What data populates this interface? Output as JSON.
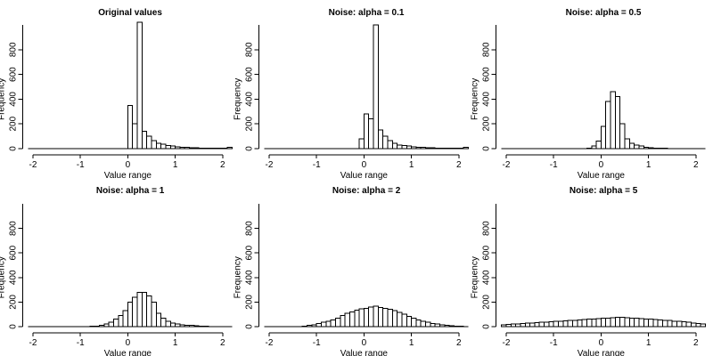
{
  "chart_data": [
    {
      "type": "bar",
      "title": "Original values",
      "xlabel": "Value range",
      "ylabel": "Frequency",
      "xlim": [
        -2.1,
        2.2
      ],
      "ylim": [
        0,
        1000
      ],
      "xticks": [
        "-2",
        "-1",
        "0",
        "1",
        "2"
      ],
      "yticks": [
        "0",
        "200",
        "400",
        "600",
        "800"
      ],
      "bin_width": 0.1,
      "bin_starts": [
        0.0,
        0.1,
        0.2,
        0.3,
        0.4,
        0.5,
        0.6,
        0.7,
        0.8,
        0.9,
        1.0,
        1.1,
        1.2,
        1.3,
        1.4,
        1.5,
        1.6,
        1.7,
        1.8,
        1.9,
        2.0,
        2.1
      ],
      "values": [
        350,
        200,
        1020,
        140,
        100,
        65,
        45,
        35,
        25,
        20,
        15,
        12,
        10,
        8,
        6,
        5,
        4,
        3,
        3,
        2,
        2,
        10
      ]
    },
    {
      "type": "bar",
      "title": "Noise: alpha = 0.1",
      "xlabel": "Value range",
      "ylabel": "Frequency",
      "xlim": [
        -2.1,
        2.2
      ],
      "ylim": [
        0,
        1000
      ],
      "xticks": [
        "-2",
        "-1",
        "0",
        "1",
        "2"
      ],
      "yticks": [
        "0",
        "200",
        "400",
        "600",
        "800"
      ],
      "bin_width": 0.1,
      "bin_starts": [
        -0.1,
        0.0,
        0.1,
        0.2,
        0.3,
        0.4,
        0.5,
        0.6,
        0.7,
        0.8,
        0.9,
        1.0,
        1.1,
        1.2,
        1.3,
        1.4,
        1.5,
        1.6,
        1.7,
        1.8,
        1.9,
        2.0,
        2.1
      ],
      "values": [
        80,
        280,
        240,
        1000,
        150,
        100,
        65,
        45,
        30,
        25,
        20,
        15,
        12,
        10,
        8,
        6,
        5,
        4,
        3,
        3,
        2,
        2,
        10
      ]
    },
    {
      "type": "bar",
      "title": "Noise: alpha = 0.5",
      "xlabel": "Value range",
      "ylabel": "Frequency",
      "xlim": [
        -2.1,
        2.2
      ],
      "ylim": [
        0,
        1000
      ],
      "xticks": [
        "-2",
        "-1",
        "0",
        "1",
        "2"
      ],
      "yticks": [
        "0",
        "200",
        "400",
        "600",
        "800"
      ],
      "bin_width": 0.1,
      "bin_starts": [
        -0.3,
        -0.2,
        -0.1,
        0.0,
        0.1,
        0.2,
        0.3,
        0.4,
        0.5,
        0.6,
        0.7,
        0.8,
        0.9,
        1.0,
        1.1,
        1.2,
        1.3
      ],
      "values": [
        5,
        20,
        60,
        180,
        380,
        460,
        420,
        200,
        80,
        45,
        30,
        20,
        12,
        8,
        5,
        3,
        2
      ]
    },
    {
      "type": "bar",
      "title": "Noise: alpha = 1",
      "xlabel": "Value range",
      "ylabel": "Frequency",
      "xlim": [
        -2.1,
        2.2
      ],
      "ylim": [
        0,
        1000
      ],
      "xticks": [
        "-2",
        "-1",
        "0",
        "1",
        "2"
      ],
      "yticks": [
        "0",
        "200",
        "400",
        "600",
        "800"
      ],
      "bin_width": 0.1,
      "bin_starts": [
        -0.8,
        -0.7,
        -0.6,
        -0.5,
        -0.4,
        -0.3,
        -0.2,
        -0.1,
        0.0,
        0.1,
        0.2,
        0.3,
        0.4,
        0.5,
        0.6,
        0.7,
        0.8,
        0.9,
        1.0,
        1.1,
        1.2,
        1.3,
        1.4,
        1.5,
        1.6
      ],
      "values": [
        2,
        5,
        10,
        20,
        35,
        60,
        90,
        130,
        200,
        240,
        280,
        280,
        250,
        200,
        110,
        70,
        45,
        30,
        20,
        15,
        12,
        10,
        8,
        5,
        3
      ]
    },
    {
      "type": "bar",
      "title": "Noise: alpha = 2",
      "xlabel": "Value range",
      "ylabel": "Frequency",
      "xlim": [
        -2.1,
        2.2
      ],
      "ylim": [
        0,
        1000
      ],
      "xticks": [
        "-2",
        "-1",
        "0",
        "1",
        "2"
      ],
      "yticks": [
        "0",
        "200",
        "400",
        "600",
        "800"
      ],
      "bin_width": 0.1,
      "bin_starts": [
        -1.3,
        -1.2,
        -1.1,
        -1.0,
        -0.9,
        -0.8,
        -0.7,
        -0.6,
        -0.5,
        -0.4,
        -0.3,
        -0.2,
        -0.1,
        0.0,
        0.1,
        0.2,
        0.3,
        0.4,
        0.5,
        0.6,
        0.7,
        0.8,
        0.9,
        1.0,
        1.1,
        1.2,
        1.3,
        1.4,
        1.5,
        1.6,
        1.7,
        1.8,
        1.9,
        2.0
      ],
      "values": [
        5,
        10,
        15,
        25,
        35,
        45,
        55,
        70,
        90,
        110,
        120,
        135,
        145,
        150,
        160,
        165,
        155,
        150,
        140,
        130,
        115,
        100,
        85,
        70,
        55,
        45,
        35,
        25,
        20,
        15,
        10,
        8,
        5,
        3
      ]
    },
    {
      "type": "bar",
      "title": "Noise: alpha = 5",
      "xlabel": "Value range",
      "ylabel": "Frequency",
      "xlim": [
        -2.1,
        2.2
      ],
      "ylim": [
        0,
        1000
      ],
      "xticks": [
        "-2",
        "-1",
        "0",
        "1",
        "2"
      ],
      "yticks": [
        "0",
        "200",
        "400",
        "600",
        "800"
      ],
      "bin_width": 0.1,
      "bin_starts": [
        -2.1,
        -2.0,
        -1.9,
        -1.8,
        -1.7,
        -1.6,
        -1.5,
        -1.4,
        -1.3,
        -1.2,
        -1.1,
        -1.0,
        -0.9,
        -0.8,
        -0.7,
        -0.6,
        -0.5,
        -0.4,
        -0.3,
        -0.2,
        -0.1,
        0.0,
        0.1,
        0.2,
        0.3,
        0.4,
        0.5,
        0.6,
        0.7,
        0.8,
        0.9,
        1.0,
        1.1,
        1.2,
        1.3,
        1.4,
        1.5,
        1.6,
        1.7,
        1.8,
        1.9,
        2.0,
        2.1
      ],
      "values": [
        15,
        18,
        20,
        22,
        25,
        28,
        30,
        32,
        35,
        38,
        40,
        42,
        45,
        48,
        50,
        52,
        55,
        58,
        60,
        62,
        65,
        68,
        70,
        72,
        75,
        75,
        72,
        70,
        68,
        65,
        62,
        60,
        58,
        55,
        52,
        50,
        45,
        42,
        40,
        35,
        30,
        25,
        20
      ]
    }
  ]
}
